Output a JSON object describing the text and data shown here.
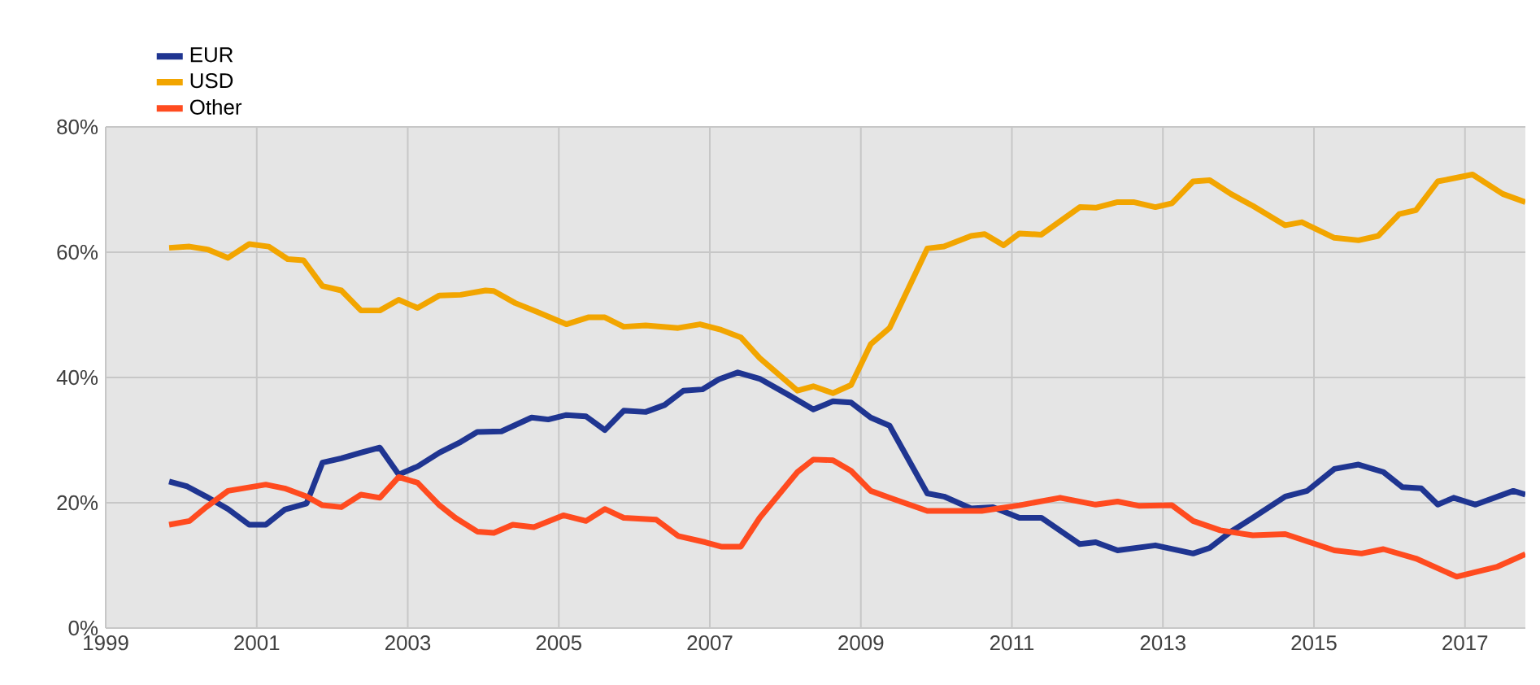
{
  "chart_data": {
    "type": "line",
    "xlim": [
      1999,
      2017.8
    ],
    "ylim": [
      0,
      80
    ],
    "xticks": [
      1999,
      2001,
      2003,
      2005,
      2007,
      2009,
      2011,
      2013,
      2015,
      2017
    ],
    "yticks": [
      {
        "value": 0,
        "label": "0%"
      },
      {
        "value": 20,
        "label": "20%"
      },
      {
        "value": 40,
        "label": "40%"
      },
      {
        "value": 60,
        "label": "60%"
      },
      {
        "value": 80,
        "label": "80%"
      }
    ],
    "grid": true,
    "legend": "top left",
    "marker": "none",
    "line_style": "solid",
    "series": [
      {
        "name": "EUR",
        "color": "#1f3591",
        "x": [
          1999.84,
          2000.08,
          2000.33,
          2000.62,
          2000.9,
          2001.12,
          2001.37,
          2001.66,
          2001.87,
          2002.12,
          2002.38,
          2002.63,
          2002.88,
          2003.13,
          2003.42,
          2003.7,
          2003.92,
          2004.24,
          2004.64,
          2004.86,
          2005.1,
          2005.36,
          2005.61,
          2005.86,
          2006.15,
          2006.4,
          2006.65,
          2006.9,
          2007.12,
          2007.37,
          2007.66,
          2008.06,
          2008.37,
          2008.63,
          2008.87,
          2009.13,
          2009.38,
          2009.88,
          2010.1,
          2010.46,
          2010.75,
          2011.1,
          2011.39,
          2011.9,
          2012.11,
          2012.4,
          2012.9,
          2013.4,
          2013.62,
          2013.9,
          2014.19,
          2014.62,
          2014.91,
          2015.27,
          2015.59,
          2015.92,
          2016.17,
          2016.42,
          2016.64,
          2016.85,
          2017.14,
          2017.64,
          2017.8
        ],
        "values": [
          23.4,
          22.6,
          21,
          19,
          16.5,
          16.5,
          18.9,
          19.9,
          26.4,
          27.1,
          28,
          28.8,
          24.5,
          25.8,
          28,
          29.7,
          31.3,
          31.4,
          33.6,
          33.3,
          34,
          33.8,
          31.6,
          34.7,
          34.5,
          35.6,
          37.9,
          38.1,
          39.7,
          40.8,
          39.8,
          37.1,
          34.9,
          36.2,
          36,
          33.6,
          32.3,
          21.5,
          21,
          19.1,
          19.3,
          17.6,
          17.6,
          13.4,
          13.7,
          12.4,
          13.2,
          11.9,
          12.8,
          15.4,
          17.6,
          21,
          21.9,
          25.4,
          26.1,
          24.9,
          22.5,
          22.3,
          19.7,
          20.8,
          19.7,
          21.9,
          21.3
        ]
      },
      {
        "name": "USD",
        "color": "#f2a500",
        "x": [
          1999.84,
          2000.11,
          2000.36,
          2000.62,
          2000.9,
          2001.16,
          2001.41,
          2001.62,
          2001.87,
          2002.12,
          2002.38,
          2002.63,
          2002.88,
          2003.13,
          2003.42,
          2003.7,
          2004.03,
          2004.14,
          2004.42,
          2004.71,
          2005.1,
          2005.39,
          2005.61,
          2005.86,
          2006.15,
          2006.58,
          2006.87,
          2007.15,
          2007.41,
          2007.66,
          2008.16,
          2008.37,
          2008.63,
          2008.87,
          2009.13,
          2009.38,
          2009.88,
          2010.1,
          2010.46,
          2010.64,
          2010.89,
          2011.1,
          2011.39,
          2011.9,
          2012.11,
          2012.4,
          2012.61,
          2012.9,
          2013.12,
          2013.4,
          2013.62,
          2013.9,
          2014.19,
          2014.62,
          2014.84,
          2015.27,
          2015.59,
          2015.85,
          2016.13,
          2016.35,
          2016.64,
          2017.1,
          2017.5,
          2017.8
        ],
        "values": [
          60.7,
          60.9,
          60.4,
          59.1,
          61.3,
          60.9,
          58.9,
          58.7,
          54.6,
          53.9,
          50.7,
          50.7,
          52.4,
          51.1,
          53.1,
          53.2,
          53.9,
          53.8,
          51.9,
          50.5,
          48.5,
          49.6,
          49.6,
          48.1,
          48.3,
          47.9,
          48.5,
          47.6,
          46.4,
          43.1,
          37.9,
          38.6,
          37.5,
          38.8,
          45.3,
          47.9,
          60.6,
          60.9,
          62.6,
          62.9,
          61.1,
          63,
          62.8,
          67.2,
          67.1,
          68,
          68,
          67.2,
          67.8,
          71.3,
          71.5,
          69.3,
          67.4,
          64.3,
          64.8,
          62.3,
          61.9,
          62.6,
          66.1,
          66.7,
          71.3,
          72.4,
          69.3,
          68
        ]
      },
      {
        "name": "Other",
        "color": "#ff4b1f",
        "x": [
          1999.84,
          2000.11,
          2000.33,
          2000.62,
          2001.12,
          2001.37,
          2001.66,
          2001.87,
          2002.12,
          2002.38,
          2002.63,
          2002.88,
          2003.13,
          2003.42,
          2003.63,
          2003.92,
          2004.14,
          2004.39,
          2004.67,
          2005.06,
          2005.36,
          2005.61,
          2005.86,
          2006.29,
          2006.58,
          2006.94,
          2007.15,
          2007.41,
          2007.66,
          2008.16,
          2008.37,
          2008.63,
          2008.87,
          2009.13,
          2009.38,
          2009.88,
          2010.6,
          2011.1,
          2011.64,
          2012.11,
          2012.4,
          2012.69,
          2013.12,
          2013.4,
          2013.76,
          2014.19,
          2014.62,
          2015.27,
          2015.63,
          2015.92,
          2016.35,
          2016.89,
          2017.43,
          2017.8
        ],
        "values": [
          16.5,
          17.1,
          19.3,
          21.9,
          22.9,
          22.3,
          21,
          19.6,
          19.3,
          21.3,
          20.8,
          24.1,
          23.2,
          19.6,
          17.6,
          15.4,
          15.2,
          16.5,
          16.1,
          18,
          17.1,
          19,
          17.6,
          17.3,
          14.7,
          13.7,
          13,
          13,
          17.6,
          24.9,
          26.9,
          26.8,
          25.1,
          21.9,
          20.8,
          18.7,
          18.7,
          19.6,
          20.8,
          19.7,
          20.2,
          19.5,
          19.6,
          17.1,
          15.6,
          14.8,
          15,
          12.4,
          11.9,
          12.6,
          11.1,
          8.2,
          9.8,
          11.8
        ]
      }
    ]
  }
}
